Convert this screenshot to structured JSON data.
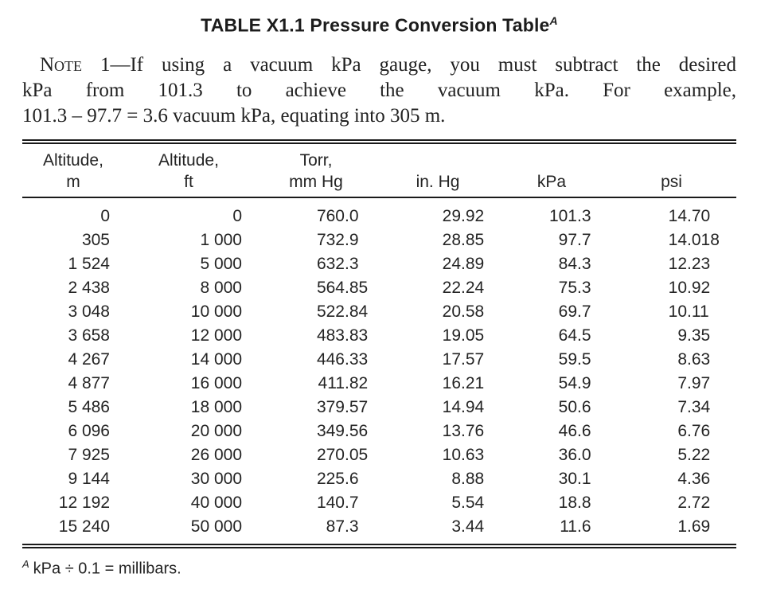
{
  "title": {
    "text": "TABLE X1.1 Pressure Conversion Table",
    "footnote_ref": "A"
  },
  "note": {
    "label": "Note 1",
    "line1_rest": "—If using a vacuum kPa gauge, you must subtract the desired",
    "line2": "kPa from 101.3 to achieve the vacuum kPa. For example,",
    "line3": "101.3 – 97.7 = 3.6 vacuum kPa, equating into 305 m."
  },
  "table": {
    "columns": [
      {
        "line1": "Altitude,",
        "line2": "m"
      },
      {
        "line1": "Altitude,",
        "line2": "ft"
      },
      {
        "line1": "Torr,",
        "line2": "mm Hg"
      },
      {
        "line1": "",
        "line2": "in. Hg"
      },
      {
        "line1": "",
        "line2": "kPa"
      },
      {
        "line1": "",
        "line2": "psi"
      }
    ],
    "rows": [
      [
        "0",
        "0",
        "760.0",
        "29.92",
        "101.3",
        "14.70"
      ],
      [
        "305",
        "1 000",
        "732.9",
        "28.85",
        "97.7",
        "14.018"
      ],
      [
        "1 524",
        "5 000",
        "632.3",
        "24.89",
        "84.3",
        "12.23"
      ],
      [
        "2 438",
        "8 000",
        "564.85",
        "22.24",
        "75.3",
        "10.92"
      ],
      [
        "3 048",
        "10 000",
        "522.84",
        "20.58",
        "69.7",
        "10.11"
      ],
      [
        "3 658",
        "12 000",
        "483.83",
        "19.05",
        "64.5",
        "9.35"
      ],
      [
        "4 267",
        "14 000",
        "446.33",
        "17.57",
        "59.5",
        "8.63"
      ],
      [
        "4 877",
        "16 000",
        "411.82",
        "16.21",
        "54.9",
        "7.97"
      ],
      [
        "5 486",
        "18 000",
        "379.57",
        "14.94",
        "50.6",
        "7.34"
      ],
      [
        "6 096",
        "20 000",
        "349.56",
        "13.76",
        "46.6",
        "6.76"
      ],
      [
        "7 925",
        "26 000",
        "270.05",
        "10.63",
        "36.0",
        "5.22"
      ],
      [
        "9 144",
        "30 000",
        "225.6",
        "8.88",
        "30.1",
        "4.36"
      ],
      [
        "12 192",
        "40 000",
        "140.7",
        "5.54",
        "18.8",
        "2.72"
      ],
      [
        "15 240",
        "50 000",
        "87.3",
        "3.44",
        "11.6",
        "1.69"
      ]
    ]
  },
  "footnote": {
    "ref": "A",
    "text": "kPa ÷ 0.1 = millibars."
  }
}
